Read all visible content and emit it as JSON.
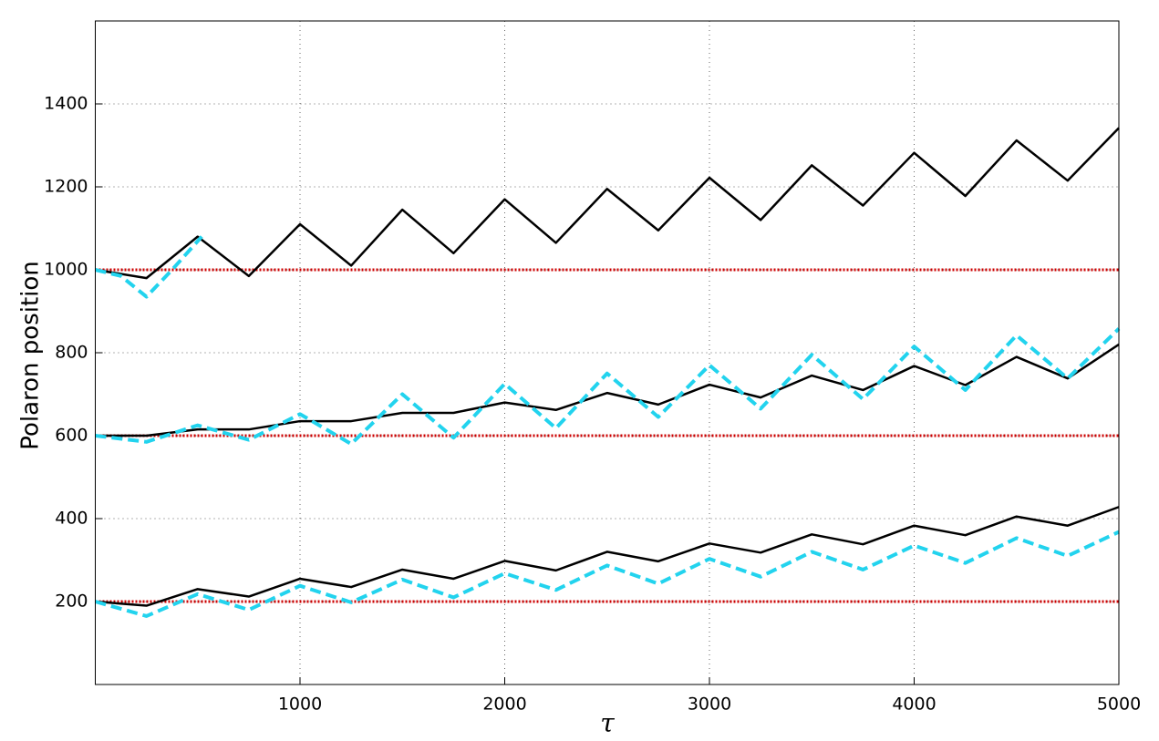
{
  "chart_data": {
    "type": "line",
    "xlabel": "τ",
    "ylabel": "Polaron position",
    "xlim": [
      0,
      5000
    ],
    "xticks": [
      1000,
      2000,
      3000,
      4000,
      5000
    ],
    "ylim": [
      0,
      1600
    ],
    "yticks": [
      200,
      400,
      600,
      800,
      1000,
      1200,
      1400
    ],
    "grid": true,
    "series": [
      {
        "color": "#cc0000",
        "dash": "dotted",
        "x": [
          0,
          5000
        ],
        "values": [
          1000,
          1000
        ]
      },
      {
        "color": "#cc0000",
        "dash": "dotted",
        "x": [
          0,
          5000
        ],
        "values": [
          600,
          600
        ]
      },
      {
        "color": "#cc0000",
        "dash": "dotted",
        "x": [
          0,
          5000
        ],
        "values": [
          200,
          200
        ]
      },
      {
        "color": "#000000",
        "dash": "solid",
        "x": [
          0,
          250,
          500,
          750,
          1000,
          1250,
          1500,
          1750,
          2000,
          2250,
          2500,
          2750,
          3000,
          3250,
          3500,
          3750,
          4000,
          4250,
          4500,
          4750,
          5000
        ],
        "values": [
          1000,
          980,
          1080,
          985,
          1110,
          1010,
          1145,
          1040,
          1170,
          1065,
          1195,
          1095,
          1222,
          1120,
          1252,
          1155,
          1282,
          1178,
          1312,
          1215,
          1342
        ]
      },
      {
        "color": "#22d3ee",
        "dash": "dashed",
        "x": [
          0,
          125,
          250,
          375,
          520
        ],
        "values": [
          1000,
          985,
          935,
          1000,
          1080
        ]
      },
      {
        "color": "#000000",
        "dash": "solid",
        "x": [
          0,
          250,
          500,
          750,
          1000,
          1250,
          1500,
          1750,
          2000,
          2250,
          2500,
          2750,
          3000,
          3250,
          3500,
          3750,
          4000,
          4250,
          4500,
          4750,
          5000
        ],
        "values": [
          600,
          600,
          615,
          615,
          635,
          635,
          655,
          655,
          680,
          662,
          703,
          675,
          723,
          692,
          745,
          710,
          768,
          722,
          790,
          738,
          820
        ]
      },
      {
        "color": "#22d3ee",
        "dash": "dashed",
        "x": [
          0,
          250,
          500,
          750,
          1000,
          1250,
          1500,
          1750,
          2000,
          2250,
          2500,
          2750,
          3000,
          3250,
          3500,
          3750,
          4000,
          4250,
          4500,
          4750,
          5000
        ],
        "values": [
          600,
          585,
          625,
          590,
          652,
          580,
          700,
          595,
          725,
          618,
          750,
          645,
          770,
          665,
          795,
          688,
          815,
          710,
          842,
          738,
          858
        ]
      },
      {
        "color": "#000000",
        "dash": "solid",
        "x": [
          0,
          250,
          500,
          750,
          1000,
          1250,
          1500,
          1750,
          2000,
          2250,
          2500,
          2750,
          3000,
          3250,
          3500,
          3750,
          4000,
          4250,
          4500,
          4750,
          5000
        ],
        "values": [
          200,
          190,
          230,
          212,
          255,
          235,
          277,
          255,
          298,
          275,
          320,
          297,
          340,
          318,
          362,
          338,
          383,
          360,
          405,
          383,
          428
        ]
      },
      {
        "color": "#22d3ee",
        "dash": "dashed",
        "x": [
          0,
          250,
          500,
          750,
          1000,
          1250,
          1500,
          1750,
          2000,
          2250,
          2500,
          2750,
          3000,
          3250,
          3500,
          3750,
          4000,
          4250,
          4500,
          4750,
          5000
        ],
        "values": [
          200,
          165,
          218,
          180,
          238,
          198,
          253,
          210,
          268,
          228,
          287,
          243,
          303,
          260,
          320,
          277,
          335,
          293,
          353,
          310,
          368
        ]
      }
    ]
  }
}
